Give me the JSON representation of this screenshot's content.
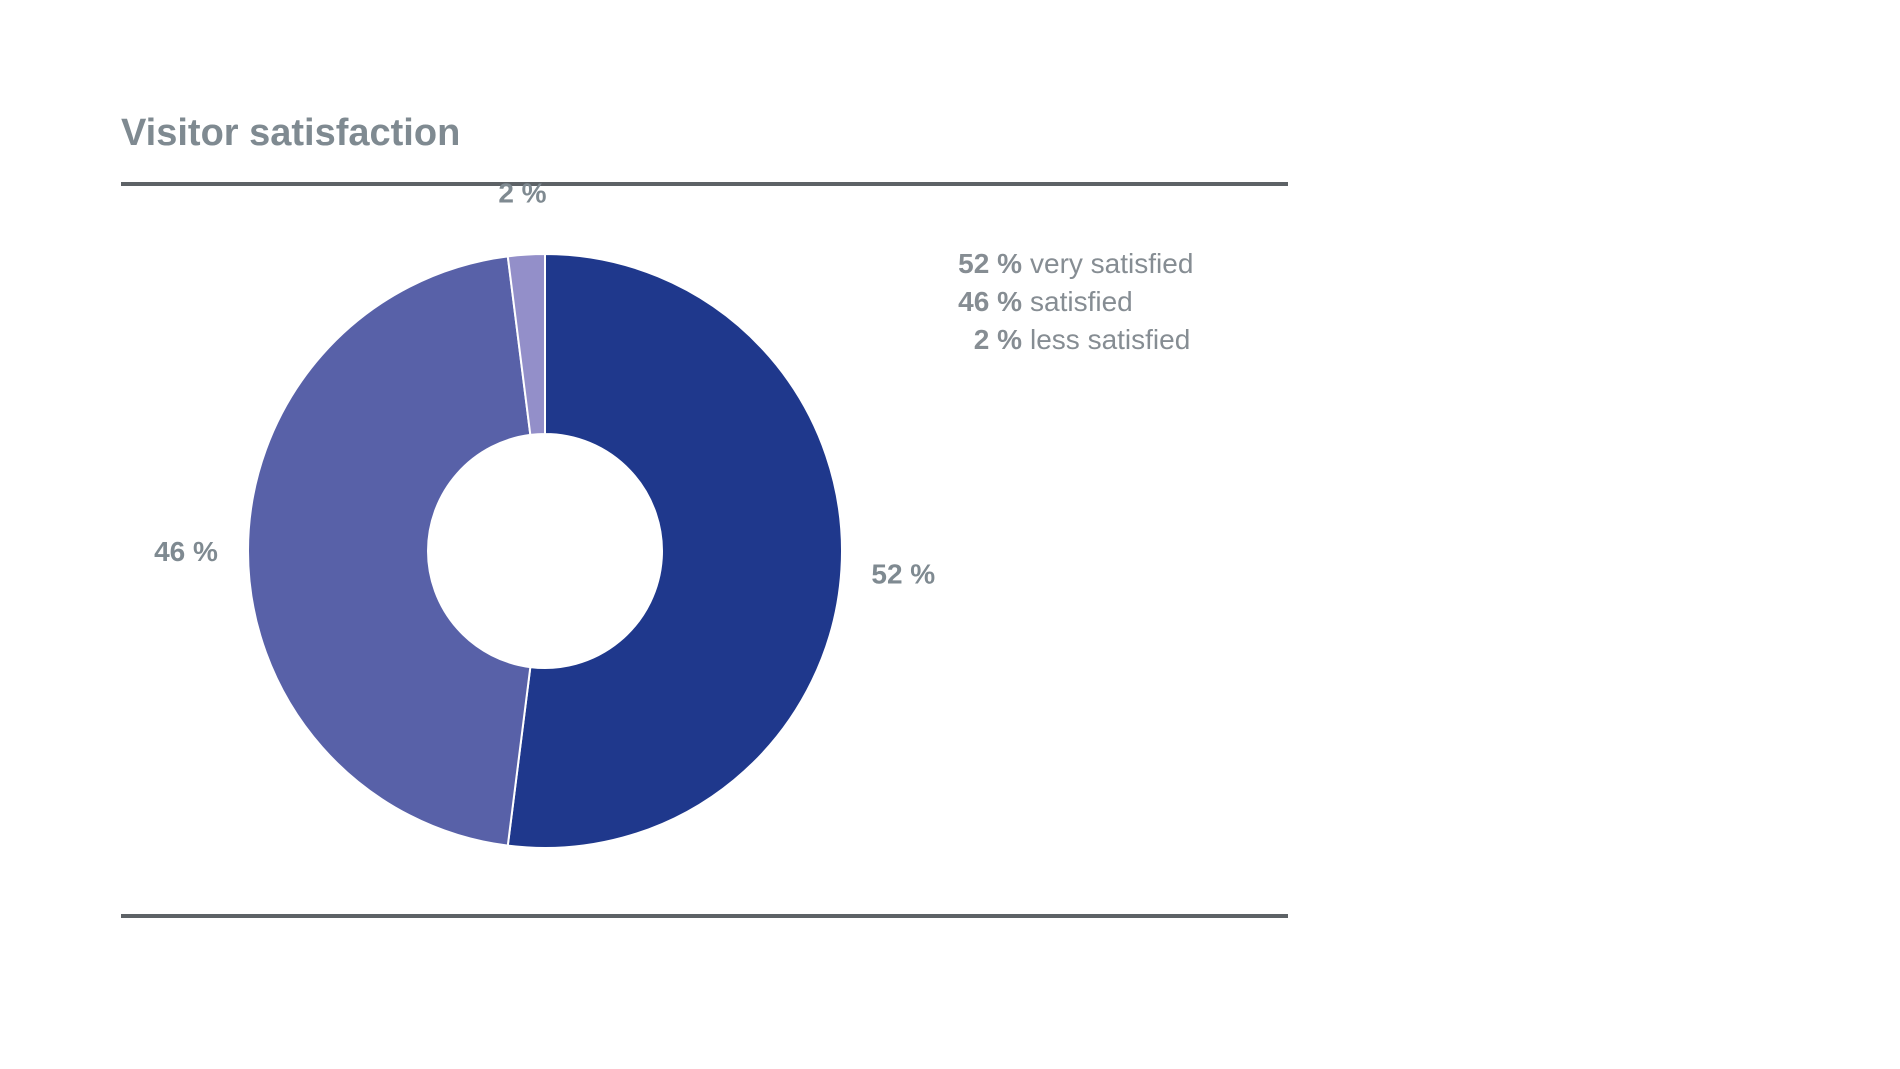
{
  "title": "Visitor satisfaction",
  "colors": {
    "text": "#7f8a91",
    "rule": "#5d6266"
  },
  "legend": [
    {
      "pct": "52 %",
      "label": "very satisfied"
    },
    {
      "pct": "46 %",
      "label": "satisfied"
    },
    {
      "pct": "2 %",
      "label": "less satisfied"
    }
  ],
  "chart_data": {
    "type": "pie",
    "donut": true,
    "slices": [
      {
        "category": "very satisfied",
        "value": 52,
        "label": "52 %",
        "color": "#1f388c"
      },
      {
        "category": "satisfied",
        "value": 46,
        "label": "46 %",
        "color": "#5861a8"
      },
      {
        "category": "less satisfied",
        "value": 2,
        "label": "2 %",
        "color": "#938fc9"
      }
    ],
    "legend_position": "top-right"
  }
}
